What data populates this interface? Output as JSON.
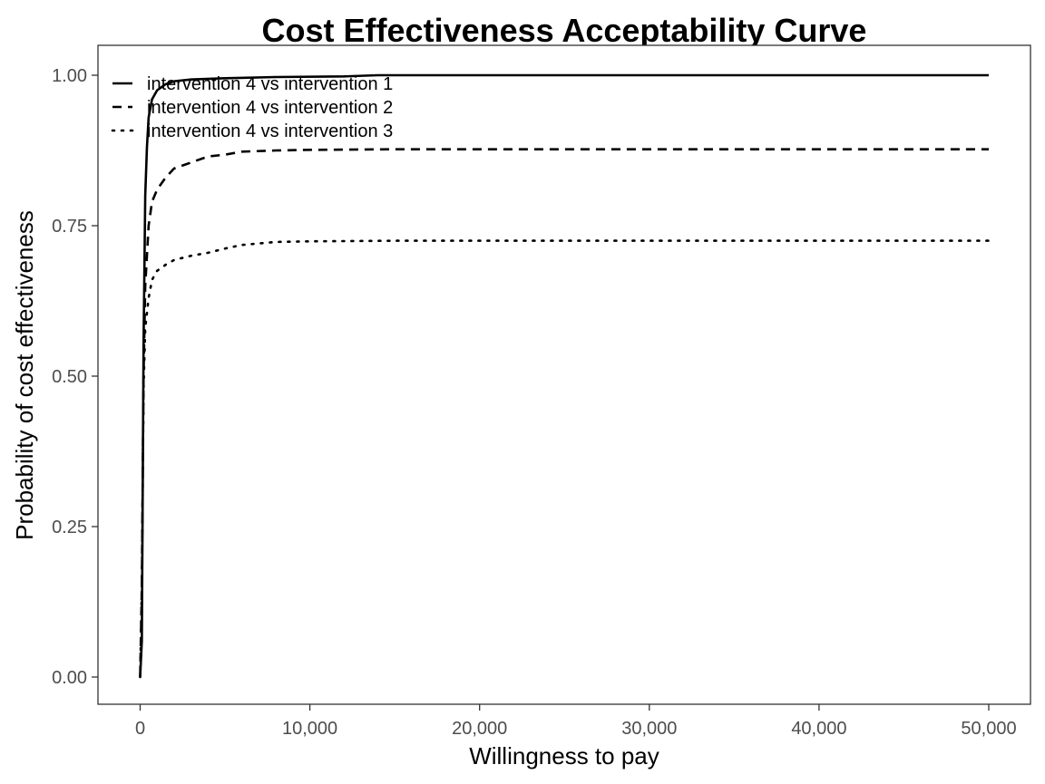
{
  "chart_data": {
    "type": "line",
    "title": "Cost Effectiveness Acceptability Curve",
    "xlabel": "Willingness to pay",
    "ylabel": "Probability of cost effectiveness",
    "xlim": [
      0,
      50000
    ],
    "ylim": [
      0,
      1
    ],
    "x_ticks": [
      0,
      10000,
      20000,
      30000,
      40000,
      50000
    ],
    "x_tick_labels": [
      "0",
      "10,000",
      "20,000",
      "30,000",
      "40,000",
      "50,000"
    ],
    "y_ticks": [
      0,
      0.25,
      0.5,
      0.75,
      1.0
    ],
    "y_tick_labels": [
      "0.00",
      "0.25",
      "0.50",
      "0.75",
      "1.00"
    ],
    "grid": false,
    "legend_position": "top-left",
    "series": [
      {
        "name": "intervention 4 vs intervention 1",
        "linetype": "solid",
        "x": [
          0,
          100,
          200,
          300,
          400,
          500,
          700,
          1000,
          1500,
          2000,
          3000,
          5000,
          8000,
          12000,
          14000,
          20000,
          30000,
          40000,
          50000
        ],
        "y": [
          0,
          0.06,
          0.55,
          0.8,
          0.88,
          0.93,
          0.96,
          0.975,
          0.985,
          0.99,
          0.993,
          0.995,
          0.997,
          0.998,
          1.0,
          1.0,
          1.0,
          1.0,
          1.0
        ]
      },
      {
        "name": "intervention 4 vs intervention 2",
        "linetype": "dashed",
        "x": [
          0,
          100,
          200,
          300,
          500,
          700,
          1000,
          1500,
          2000,
          3000,
          4000,
          5000,
          6000,
          8000,
          10000,
          15000,
          20000,
          30000,
          40000,
          50000
        ],
        "y": [
          0,
          0.15,
          0.5,
          0.65,
          0.75,
          0.79,
          0.81,
          0.83,
          0.845,
          0.855,
          0.865,
          0.868,
          0.873,
          0.875,
          0.876,
          0.877,
          0.877,
          0.877,
          0.877,
          0.877
        ]
      },
      {
        "name": "intervention 4 vs intervention 3",
        "linetype": "dotted",
        "x": [
          0,
          100,
          200,
          300,
          500,
          700,
          1000,
          1500,
          2000,
          3000,
          4000,
          5000,
          6000,
          8000,
          10000,
          15000,
          20000,
          30000,
          40000,
          50000
        ],
        "y": [
          0,
          0.15,
          0.48,
          0.58,
          0.63,
          0.66,
          0.675,
          0.685,
          0.693,
          0.7,
          0.705,
          0.712,
          0.718,
          0.723,
          0.724,
          0.725,
          0.725,
          0.725,
          0.725,
          0.725
        ]
      }
    ]
  }
}
